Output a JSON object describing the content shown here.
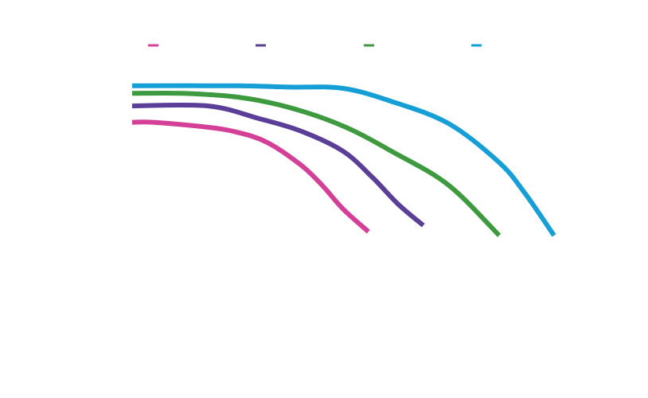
{
  "chart_data": {
    "type": "line",
    "title": "",
    "xlabel": "",
    "ylabel": "",
    "xlim": [
      0,
      100
    ],
    "ylim": [
      0,
      100
    ],
    "grid": false,
    "legend_position": "top",
    "series": [
      {
        "color": "#d43f97",
        "x": [
          0,
          5,
          18,
          25,
          32,
          40,
          45,
          50,
          56
        ],
        "y": [
          80.5,
          80.5,
          78.5,
          76.5,
          72.5,
          63.5,
          55.5,
          46,
          37
        ]
      },
      {
        "color": "#5a3e98",
        "x": [
          0,
          18,
          30,
          40,
          50,
          57,
          63,
          69
        ],
        "y": [
          87,
          87,
          82,
          77,
          69,
          58.5,
          48,
          39.5
        ]
      },
      {
        "color": "#3e9a3e",
        "x": [
          0,
          12,
          25,
          37,
          50,
          62,
          75,
          87
        ],
        "y": [
          92,
          92,
          90.5,
          86.5,
          79,
          68.5,
          55.5,
          35.5
        ]
      },
      {
        "color": "#159fd6",
        "x": [
          0,
          25,
          37,
          50,
          62,
          75,
          87,
          93,
          100
        ],
        "y": [
          95,
          95,
          94.5,
          94,
          88.5,
          80,
          64.5,
          52.5,
          35.5
        ]
      }
    ]
  }
}
